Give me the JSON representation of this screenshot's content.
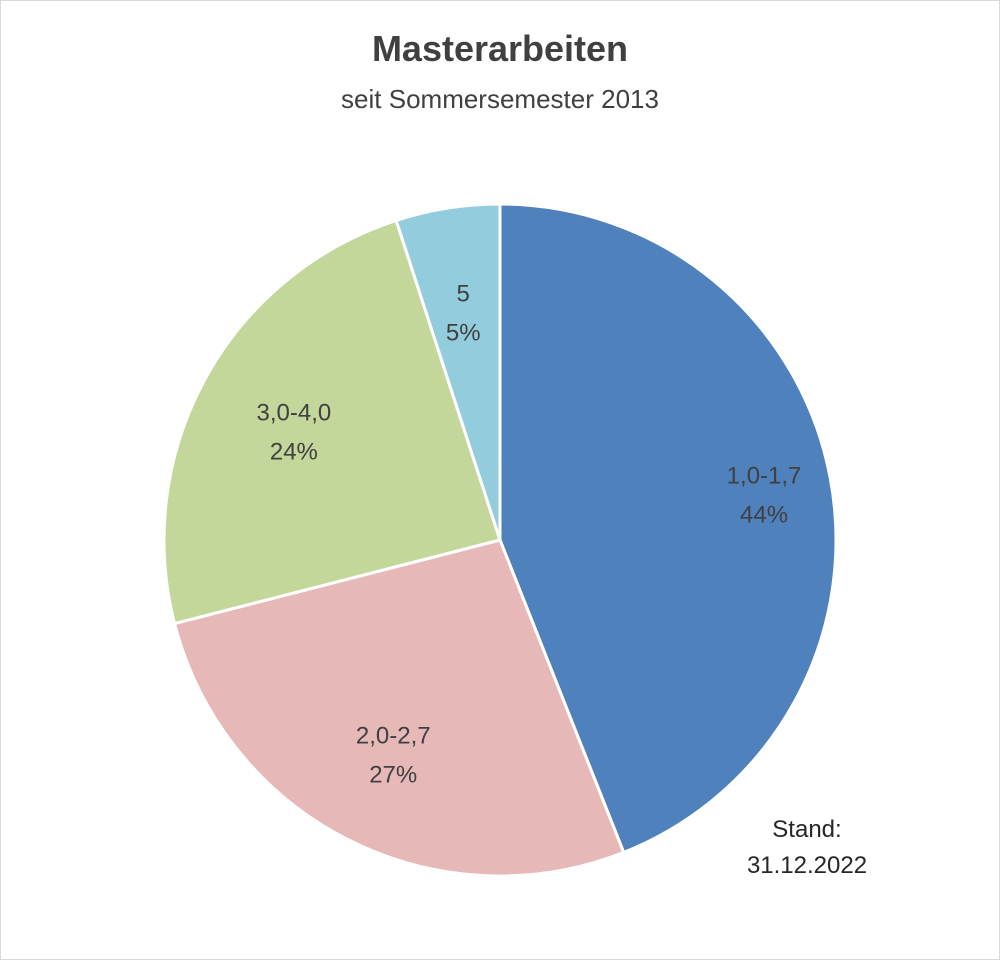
{
  "chart_data": {
    "type": "pie",
    "title": "Masterarbeiten",
    "subtitle": "seit Sommersemester 2013",
    "slices": [
      {
        "label": "1,0-1,7",
        "value": 44,
        "display": "44%",
        "color": "#4F81BD"
      },
      {
        "label": "2,0-2,7",
        "value": 27,
        "display": "27%",
        "color": "#E6B9B8"
      },
      {
        "label": "3,0-4,0",
        "value": 24,
        "display": "24%",
        "color": "#C4D79B"
      },
      {
        "label": "5",
        "value": 5,
        "display": "5%",
        "color": "#93CDDD"
      }
    ],
    "note_line1": "Stand:",
    "note_line2": "31.12.2022"
  }
}
